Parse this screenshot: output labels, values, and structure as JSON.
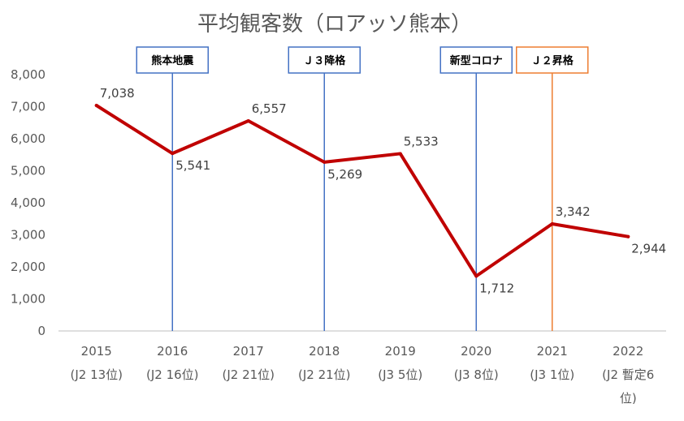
{
  "chart_data": {
    "type": "line",
    "title": "平均観客数（ロアッソ熊本）",
    "xlabel": "",
    "ylabel": "",
    "ylim": [
      0,
      8000
    ],
    "yticks": [
      0,
      1000,
      2000,
      3000,
      4000,
      5000,
      6000,
      7000,
      8000
    ],
    "ytick_labels": [
      "0",
      "1,000",
      "2,000",
      "3,000",
      "4,000",
      "5,000",
      "6,000",
      "7,000",
      "8,000"
    ],
    "categories": [
      {
        "year": "2015",
        "sub": "(J2 13位)"
      },
      {
        "year": "2016",
        "sub": "(J2 16位)"
      },
      {
        "year": "2017",
        "sub": "(J2 21位)"
      },
      {
        "year": "2018",
        "sub": "(J2 21位)"
      },
      {
        "year": "2019",
        "sub": "(J3 5位)"
      },
      {
        "year": "2020",
        "sub": "(J3 8位)"
      },
      {
        "year": "2021",
        "sub": "(J3 1位)"
      },
      {
        "year": "2022",
        "sub": "(J2 暫定6",
        "sub2": "位)"
      }
    ],
    "series": [
      {
        "values": [
          7038,
          5541,
          6557,
          5269,
          5533,
          1712,
          3342,
          2944
        ],
        "labels": [
          "7,038",
          "5,541",
          "6,557",
          "5,269",
          "5,533",
          "1,712",
          "3,342",
          "2,944"
        ],
        "color": "#c00000"
      }
    ],
    "events": [
      {
        "label": "熊本地震",
        "index": 1,
        "color": "#4472c4"
      },
      {
        "label": "Ｊ３降格",
        "index": 3,
        "color": "#4472c4"
      },
      {
        "label": "新型コロナ",
        "index": 5,
        "color": "#4472c4"
      },
      {
        "label": "Ｊ２昇格",
        "index": 6,
        "color": "#ed7d31"
      }
    ],
    "grid": false,
    "legend": "none"
  }
}
